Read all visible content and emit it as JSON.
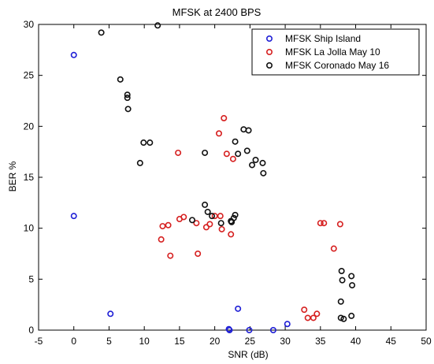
{
  "chart_data": {
    "type": "scatter",
    "title": "MFSK at 2400 BPS",
    "xlabel": "SNR (dB)",
    "ylabel": "BER %",
    "xlim": [
      -5,
      50
    ],
    "ylim": [
      0,
      30
    ],
    "xticks": [
      -5,
      0,
      5,
      10,
      15,
      20,
      25,
      30,
      35,
      40,
      45,
      50
    ],
    "yticks": [
      0,
      5,
      10,
      15,
      20,
      25,
      30
    ],
    "legend_position": "top-right",
    "grid": false,
    "series": [
      {
        "name": "MFSK Ship Island",
        "color": "#1f1fd6",
        "points": [
          [
            0.0,
            27.0
          ],
          [
            0.0,
            11.2
          ],
          [
            5.2,
            1.6
          ],
          [
            22.0,
            0.1
          ],
          [
            22.1,
            0.0
          ],
          [
            23.3,
            2.1
          ],
          [
            24.9,
            0.0
          ],
          [
            28.3,
            0.0
          ],
          [
            30.3,
            0.6
          ]
        ]
      },
      {
        "name": "MFSK La Jolla May 10",
        "color": "#d62020",
        "points": [
          [
            12.4,
            8.9
          ],
          [
            12.6,
            10.2
          ],
          [
            13.4,
            10.3
          ],
          [
            13.7,
            7.3
          ],
          [
            14.8,
            17.4
          ],
          [
            15.0,
            10.9
          ],
          [
            15.6,
            11.1
          ],
          [
            17.4,
            10.5
          ],
          [
            17.6,
            7.5
          ],
          [
            18.8,
            10.1
          ],
          [
            19.3,
            10.4
          ],
          [
            20.0,
            11.2
          ],
          [
            20.6,
            19.3
          ],
          [
            20.8,
            11.2
          ],
          [
            21.0,
            9.9
          ],
          [
            21.3,
            20.8
          ],
          [
            21.7,
            17.3
          ],
          [
            22.3,
            9.4
          ],
          [
            22.6,
            16.8
          ],
          [
            32.7,
            2.0
          ],
          [
            33.2,
            1.2
          ],
          [
            34.0,
            1.2
          ],
          [
            34.5,
            1.6
          ],
          [
            35.0,
            10.5
          ],
          [
            35.5,
            10.5
          ],
          [
            36.9,
            8.0
          ],
          [
            37.8,
            10.4
          ]
        ]
      },
      {
        "name": "MFSK Coronado May 16",
        "color": "#111111",
        "points": [
          [
            3.9,
            29.2
          ],
          [
            11.9,
            29.9
          ],
          [
            6.6,
            24.6
          ],
          [
            7.6,
            23.1
          ],
          [
            7.6,
            22.8
          ],
          [
            7.7,
            21.7
          ],
          [
            9.4,
            16.4
          ],
          [
            9.9,
            18.4
          ],
          [
            10.8,
            18.4
          ],
          [
            16.8,
            10.8
          ],
          [
            18.6,
            12.3
          ],
          [
            18.6,
            17.4
          ],
          [
            19.0,
            11.6
          ],
          [
            19.6,
            11.2
          ],
          [
            20.9,
            10.5
          ],
          [
            22.3,
            10.7
          ],
          [
            22.4,
            10.6
          ],
          [
            22.7,
            11.0
          ],
          [
            22.9,
            11.3
          ],
          [
            22.9,
            18.5
          ],
          [
            23.3,
            17.3
          ],
          [
            24.1,
            19.7
          ],
          [
            24.8,
            19.6
          ],
          [
            24.6,
            17.6
          ],
          [
            25.3,
            16.2
          ],
          [
            25.8,
            16.7
          ],
          [
            26.8,
            16.4
          ],
          [
            26.9,
            15.4
          ],
          [
            38.0,
            5.8
          ],
          [
            38.1,
            4.9
          ],
          [
            37.9,
            2.8
          ],
          [
            37.9,
            1.2
          ],
          [
            38.3,
            1.1
          ],
          [
            39.4,
            5.3
          ],
          [
            39.5,
            4.4
          ],
          [
            39.4,
            1.4
          ]
        ]
      }
    ]
  }
}
